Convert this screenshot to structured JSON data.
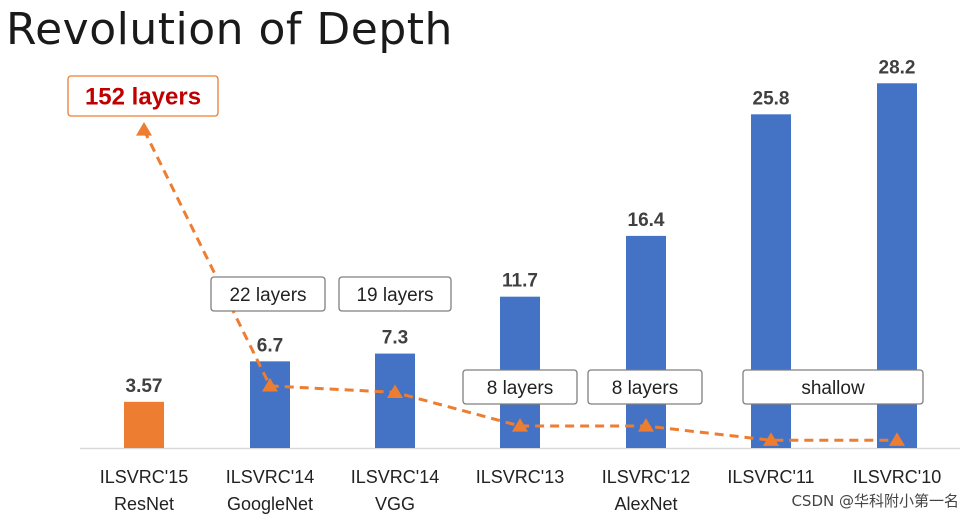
{
  "title": "Revolution of Depth",
  "watermark": "CSDN @华科附小第一名",
  "colors": {
    "bar_blue": "#4472c4",
    "bar_orange": "#ed7d31",
    "trend_line": "#ed7d31",
    "highlight_text": "#c00000"
  },
  "chart_data": {
    "type": "bar",
    "title": "Revolution of Depth",
    "categories": [
      [
        "ILSVRC'15",
        "ResNet"
      ],
      [
        "ILSVRC'14",
        "GoogleNet"
      ],
      [
        "ILSVRC'14",
        "VGG"
      ],
      [
        "ILSVRC'13",
        ""
      ],
      [
        "ILSVRC'12",
        "AlexNet"
      ],
      [
        "ILSVRC'11",
        ""
      ],
      [
        "ILSVRC'10",
        ""
      ]
    ],
    "values": [
      3.57,
      6.7,
      7.3,
      11.7,
      16.4,
      25.8,
      28.2
    ],
    "value_labels": [
      "3.57",
      "6.7",
      "7.3",
      "11.7",
      "16.4",
      "25.8",
      "28.2"
    ],
    "bar_colors": [
      "#ed7d31",
      "#4472c4",
      "#4472c4",
      "#4472c4",
      "#4472c4",
      "#4472c4",
      "#4472c4"
    ],
    "ylim": [
      0,
      30
    ],
    "depth_labels": [
      "152 layers",
      "22 layers",
      "19 layers",
      "8 layers",
      "8 layers",
      "shallow",
      ""
    ],
    "trend_values": [
      30,
      4.8,
      4.3,
      1.7,
      1.7,
      0.6,
      0.6
    ]
  }
}
